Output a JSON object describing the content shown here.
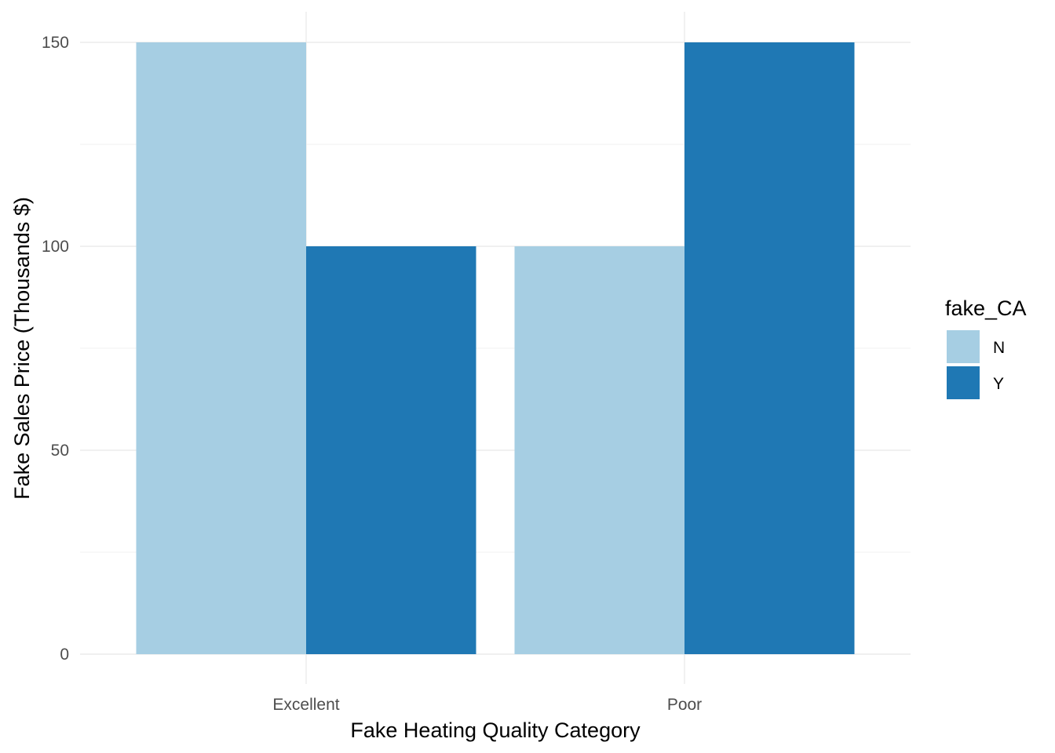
{
  "chart_data": {
    "type": "bar",
    "categories": [
      "Excellent",
      "Poor"
    ],
    "series": [
      {
        "name": "N",
        "values": [
          150,
          100
        ],
        "color": "#a6cee3"
      },
      {
        "name": "Y",
        "values": [
          100,
          150
        ],
        "color": "#1f78b4"
      }
    ],
    "xlabel": "Fake Heating Quality Category",
    "ylabel": "Fake Sales Price (Thousands $)",
    "ylim": [
      0,
      150
    ],
    "yticks": [
      0,
      50,
      100,
      150
    ],
    "grid": true,
    "legend": {
      "title": "fake_CA",
      "placement": "right"
    },
    "colors": {
      "grid_major": "#ebebeb",
      "grid_minor": "#f2f2f2",
      "tick_text": "#4d4d4d"
    }
  }
}
